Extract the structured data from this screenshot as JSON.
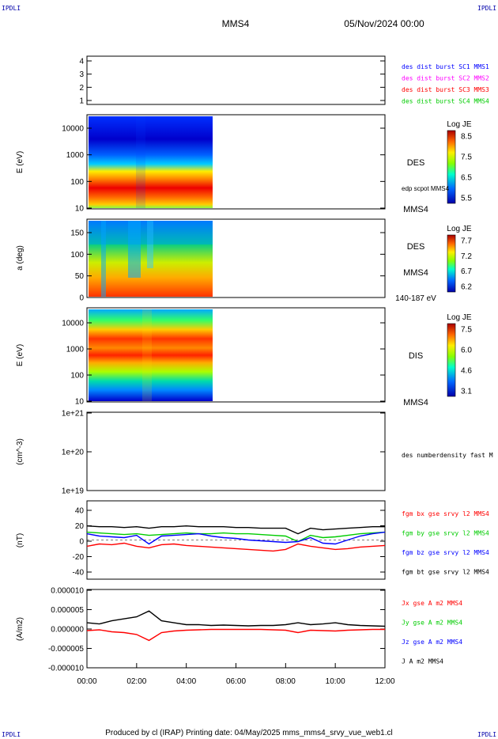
{
  "header": {
    "corner_label": "IPDLI",
    "spacecraft": "MMS4",
    "date": "05/Nov/2024 00:00"
  },
  "footer": {
    "text": "Produced by cl (IRAP)   Printing date: 04/May/2025   mms_mms4_srvy_vue_web1.cl"
  },
  "time_axis": {
    "range_hours": [
      0,
      12
    ],
    "ticks": [
      "00:00",
      "02:00",
      "04:00",
      "06:00",
      "08:00",
      "10:00",
      "12:00"
    ],
    "data_end_hours": 5.0
  },
  "colors": {
    "mms1": "#0000ff",
    "mms2": "#ff00ff",
    "mms3": "#ff0000",
    "mms4": "#00cc00",
    "bx": "#ff0000",
    "by": "#00cc00",
    "bz": "#0000ff",
    "bt": "#000000"
  },
  "panels": {
    "burst": {
      "yticks": [
        "4",
        "3",
        "2",
        "1"
      ],
      "ylim": [
        0.5,
        4.5
      ],
      "legend": [
        {
          "text": "des dist burst SC1 MMS1",
          "color": "#0000ff"
        },
        {
          "text": "des dist burst SC2 MMS2",
          "color": "#ff00ff"
        },
        {
          "text": "des dist burst SC3 MMS3",
          "color": "#ff0000"
        },
        {
          "text": "des dist burst SC4 MMS4",
          "color": "#00cc00"
        }
      ]
    },
    "des_energy": {
      "ylabel": "E (eV)",
      "yticks": [
        "10000",
        "1000",
        "100",
        "10"
      ],
      "right_label": "DES",
      "right_sub": "edp scpot MMS4",
      "right_bottom": "MMS4",
      "colorbar": {
        "title": "Log JE",
        "ticks": [
          "8.5",
          "7.5",
          "6.5",
          "5.5"
        ]
      }
    },
    "des_pitch": {
      "ylabel": "a (deg)",
      "yticks": [
        "150",
        "100",
        "50",
        "0"
      ],
      "right_label": "DES",
      "right_sub": "MMS4",
      "right_bottom": "140-187 eV",
      "colorbar": {
        "title": "Log JE",
        "ticks": [
          "7.7",
          "7.2",
          "6.7",
          "6.2"
        ]
      }
    },
    "dis_energy": {
      "ylabel": "E (eV)",
      "yticks": [
        "10000",
        "1000",
        "100",
        "10"
      ],
      "right_label": "DIS",
      "right_bottom": "MMS4",
      "colorbar": {
        "title": "Log JE",
        "ticks": [
          "7.5",
          "6.0",
          "4.6",
          "3.1"
        ]
      }
    },
    "density": {
      "ylabel": "(cm^-3)",
      "yticks": [
        "1e+21",
        "1e+20",
        "1e+19"
      ],
      "legend": [
        {
          "text": "des numberdensity fast M",
          "color": "#000000"
        }
      ]
    },
    "bfield": {
      "ylabel": "(nT)",
      "yticks": [
        "40",
        "20",
        "0",
        "-20",
        "-40"
      ],
      "ylim": [
        -50,
        50
      ],
      "legend": [
        {
          "text": "fgm bx gse srvy l2 MMS4",
          "color": "#ff0000"
        },
        {
          "text": "fgm by gse srvy l2 MMS4",
          "color": "#00cc00"
        },
        {
          "text": "fgm bz gse srvy l2 MMS4",
          "color": "#0000ff"
        },
        {
          "text": "fgm bt gse srvy l2 MMS4",
          "color": "#000000"
        }
      ]
    },
    "current": {
      "ylabel": "(A/m2)",
      "yticks": [
        "0.000010",
        "0.000005",
        "0.000000",
        "-0.000005",
        "-0.000010"
      ],
      "ylim": [
        -1e-05,
        1e-05
      ],
      "legend": [
        {
          "text": "Jx gse A m2 MMS4",
          "color": "#ff0000"
        },
        {
          "text": "Jy gse A m2 MMS4",
          "color": "#00cc00"
        },
        {
          "text": "Jz gse A m2 MMS4",
          "color": "#0000ff"
        },
        {
          "text": "J A m2 MMS4",
          "color": "#000000"
        }
      ]
    }
  },
  "chart_data": [
    {
      "type": "line",
      "name_ref": "bfield",
      "x_hours": [
        0,
        0.5,
        1,
        1.5,
        2,
        2.5,
        3,
        3.5,
        4,
        4.5,
        5,
        5.5,
        6,
        6.5,
        7,
        7.5,
        8,
        8.5,
        9,
        9.5,
        10,
        10.5,
        11,
        11.5,
        12
      ],
      "series": [
        {
          "name": "fgm bx gse srvy l2 MMS4",
          "values": [
            -8,
            -5,
            -6,
            -4,
            -8,
            -10,
            -6,
            -5,
            -7,
            -8,
            -9,
            -10,
            -11,
            -12,
            -13,
            -14,
            -12,
            -5,
            -8,
            -10,
            -12,
            -11,
            -9,
            -8,
            -7
          ]
        },
        {
          "name": "fgm by gse srvy l2 MMS4",
          "values": [
            10,
            9,
            8,
            7,
            8,
            6,
            7,
            8,
            9,
            8,
            8,
            9,
            8,
            8,
            7,
            6,
            5,
            -2,
            6,
            3,
            4,
            6,
            8,
            9,
            10
          ]
        },
        {
          "name": "fgm bz gse srvy l2 MMS4",
          "values": [
            8,
            5,
            4,
            3,
            6,
            -5,
            5,
            6,
            7,
            8,
            5,
            3,
            2,
            0,
            -1,
            -2,
            -3,
            -2,
            3,
            -4,
            -5,
            0,
            5,
            8,
            10
          ]
        },
        {
          "name": "fgm bt gse srvy l2 MMS4",
          "values": [
            18,
            17,
            17,
            16,
            17,
            15,
            17,
            17,
            18,
            17,
            17,
            17,
            16,
            16,
            15,
            15,
            15,
            8,
            15,
            13,
            14,
            15,
            16,
            17,
            17
          ]
        }
      ]
    },
    {
      "type": "line",
      "name_ref": "current",
      "x_hours": [
        0,
        0.5,
        1,
        1.5,
        2,
        2.5,
        3,
        3.5,
        4,
        4.5,
        5,
        5.5,
        6,
        6.5,
        7,
        7.5,
        8,
        8.5,
        9,
        9.5,
        10,
        10.5,
        11,
        11.5,
        12
      ],
      "series": [
        {
          "name": "J A m2 MMS4",
          "values": [
            1.5e-06,
            1.2e-06,
            2e-06,
            2.5e-06,
            3e-06,
            4.5e-06,
            2e-06,
            1.5e-06,
            1e-06,
            1e-06,
            8e-07,
            9e-07,
            8e-07,
            7e-07,
            8e-07,
            8e-07,
            1e-06,
            1.5e-06,
            1e-06,
            1.2e-06,
            1.5e-06,
            1e-06,
            8e-07,
            7e-07,
            6e-07
          ]
        },
        {
          "name": "Jx gse A m2 MMS4",
          "values": [
            -5e-07,
            -3e-07,
            -8e-07,
            -1e-06,
            -1.5e-06,
            -3e-06,
            -1e-06,
            -6e-07,
            -4e-07,
            -3e-07,
            -2e-07,
            -2e-07,
            -2e-07,
            -2e-07,
            -2e-07,
            -3e-07,
            -4e-07,
            -1e-06,
            -4e-07,
            -5e-07,
            -6e-07,
            -4e-07,
            -3e-07,
            -2e-07,
            -2e-07
          ]
        }
      ]
    }
  ]
}
